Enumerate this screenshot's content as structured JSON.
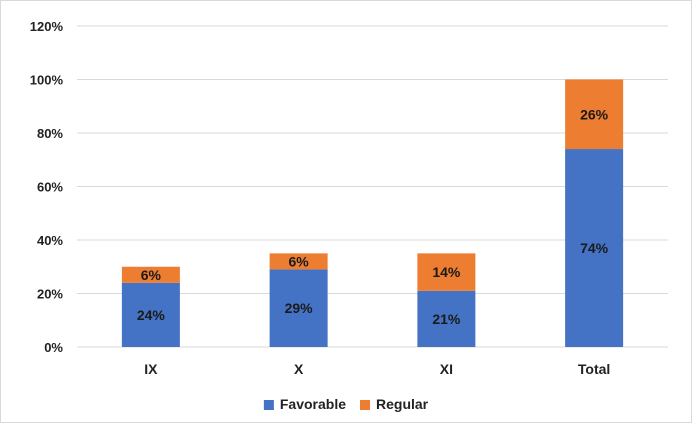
{
  "chart_data": {
    "type": "bar",
    "stacked": true,
    "categories": [
      "IX",
      "X",
      "XI",
      "Total"
    ],
    "series": [
      {
        "name": "Favorable",
        "values": [
          24,
          29,
          21,
          74
        ],
        "labels": [
          "24%",
          "29%",
          "21%",
          "74%"
        ],
        "color": "#4472C4"
      },
      {
        "name": "Regular",
        "values": [
          6,
          6,
          14,
          26
        ],
        "labels": [
          "6%",
          "6%",
          "14%",
          "26%"
        ],
        "color": "#ED7D31"
      }
    ],
    "ylim": [
      0,
      120
    ],
    "yticks": [
      0,
      20,
      40,
      60,
      80,
      100,
      120
    ],
    "ytick_labels": [
      "0%",
      "20%",
      "40%",
      "60%",
      "80%",
      "100%",
      "120%"
    ],
    "grid": true,
    "legend_position": "bottom",
    "title": "",
    "xlabel": "",
    "ylabel": ""
  },
  "colors": {
    "grid": "#D9D9D9",
    "border": "#D9D9D9"
  }
}
